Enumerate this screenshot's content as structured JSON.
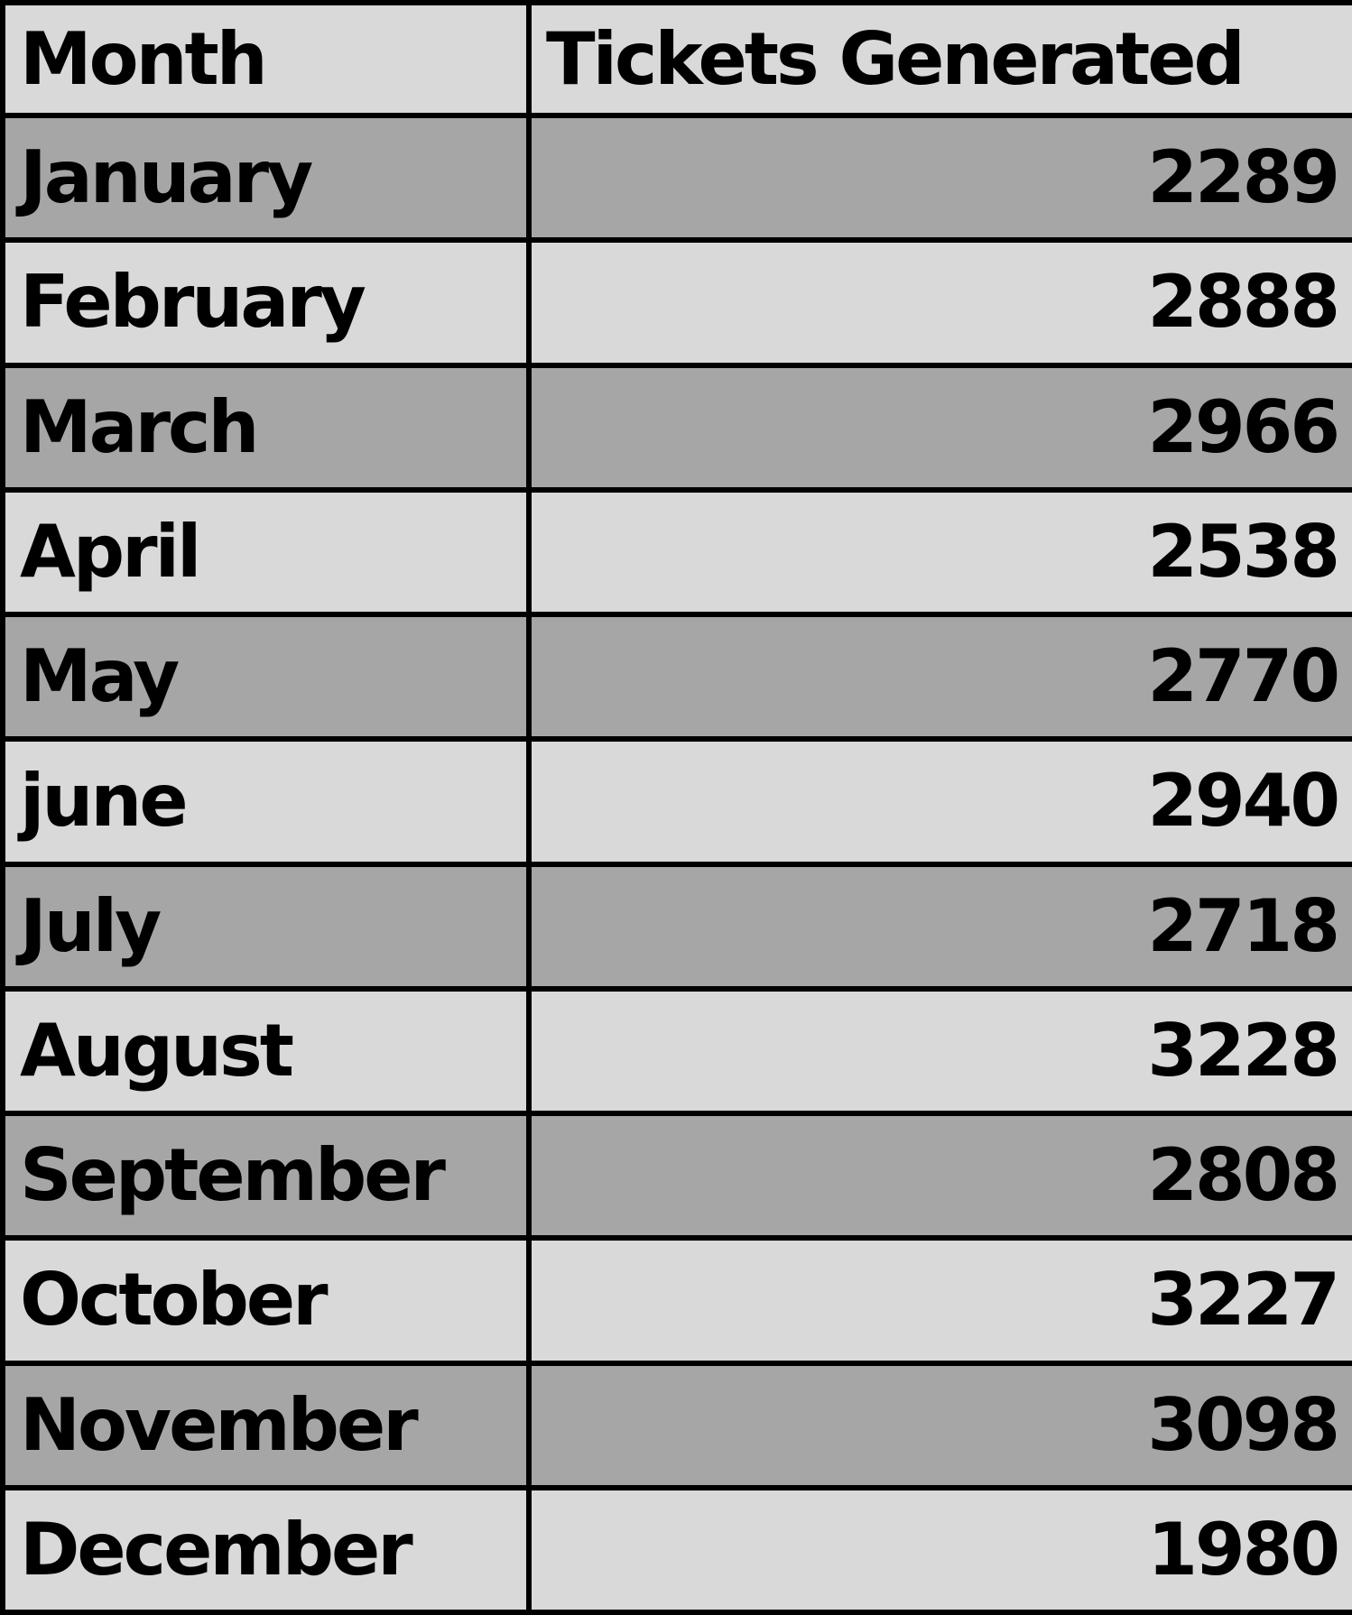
{
  "chart_data": {
    "type": "table",
    "columns": [
      "Month",
      "Tickets Generated"
    ],
    "rows": [
      [
        "January",
        2289
      ],
      [
        "February",
        2888
      ],
      [
        "March",
        2966
      ],
      [
        "April",
        2538
      ],
      [
        "May",
        2770
      ],
      [
        "june",
        2940
      ],
      [
        "July",
        2718
      ],
      [
        "August",
        3228
      ],
      [
        "September",
        2808
      ],
      [
        "October",
        3227
      ],
      [
        "November",
        3098
      ],
      [
        "December",
        1980
      ]
    ]
  },
  "colors": {
    "header_bg": "#d9d9d9",
    "row_light": "#d9d9d9",
    "row_dark": "#a6a6a6",
    "border": "#000000",
    "text": "#000000"
  }
}
